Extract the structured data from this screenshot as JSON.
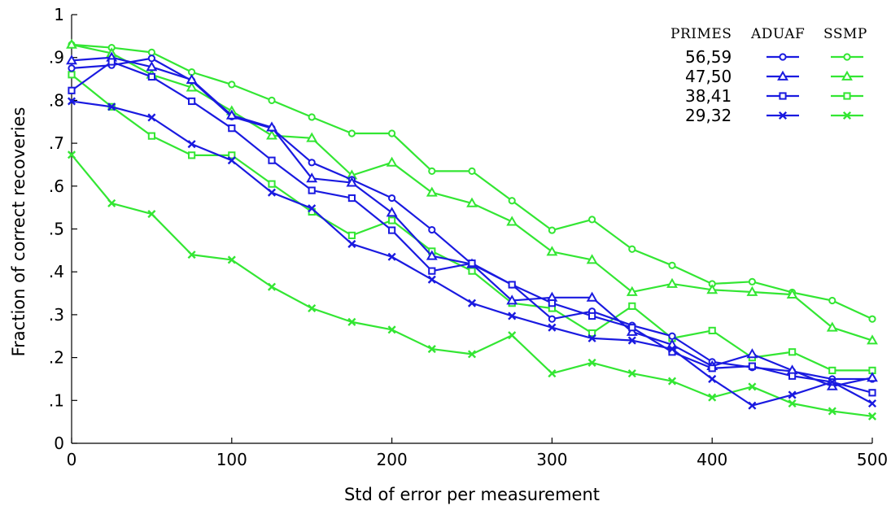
{
  "chart_data": {
    "type": "line",
    "xlabel": "Std of error per measurement",
    "ylabel": "Fraction of correct recoveries",
    "xlim": [
      0,
      500
    ],
    "ylim": [
      0,
      1
    ],
    "x_ticks": [
      0,
      100,
      200,
      300,
      400,
      500
    ],
    "x_tick_labels": [
      "0",
      "100",
      "200",
      "300",
      "400",
      "500"
    ],
    "y_ticks": [
      0,
      0.1,
      0.2,
      0.3,
      0.4,
      0.5,
      0.6,
      0.7,
      0.8,
      0.9,
      1.0
    ],
    "y_tick_labels": [
      "0",
      ".1",
      ".2",
      ".3",
      ".4",
      ".5",
      ".6",
      ".7",
      ".8",
      ".9",
      "1"
    ],
    "grid": false,
    "legend": {
      "placement": "top-right",
      "headers": [
        "PRIMES",
        "ADUAF",
        "SSMP"
      ],
      "rows": [
        "56,59",
        "47,50",
        "38,41",
        "29,32"
      ]
    },
    "colors": {
      "ADUAF": "#1a1ae0",
      "SSMP": "#33e633"
    },
    "x": [
      0,
      25,
      50,
      75,
      100,
      125,
      150,
      175,
      200,
      225,
      250,
      275,
      300,
      325,
      350,
      375,
      400,
      425,
      450,
      475,
      500
    ],
    "series": [
      {
        "method": "ADUAF",
        "primes": "56,59",
        "marker": "circle",
        "values": [
          0.875,
          0.882,
          0.898,
          0.846,
          0.762,
          0.735,
          0.655,
          0.615,
          0.572,
          0.498,
          0.418,
          0.37,
          0.29,
          0.308,
          0.275,
          0.25,
          0.19,
          0.177,
          0.168,
          0.15,
          0.15
        ]
      },
      {
        "method": "ADUAF",
        "primes": "47,50",
        "marker": "triangle",
        "values": [
          0.893,
          0.9,
          0.878,
          0.848,
          0.765,
          0.737,
          0.618,
          0.608,
          0.538,
          0.437,
          0.418,
          0.333,
          0.34,
          0.34,
          0.26,
          0.23,
          0.18,
          0.208,
          0.17,
          0.133,
          0.153
        ]
      },
      {
        "method": "ADUAF",
        "primes": "38,41",
        "marker": "square",
        "values": [
          0.823,
          0.89,
          0.855,
          0.798,
          0.735,
          0.66,
          0.59,
          0.572,
          0.497,
          0.402,
          0.42,
          0.37,
          0.327,
          0.297,
          0.27,
          0.213,
          0.175,
          0.18,
          0.157,
          0.143,
          0.118
        ]
      },
      {
        "method": "ADUAF",
        "primes": "29,32",
        "marker": "cross",
        "values": [
          0.798,
          0.785,
          0.76,
          0.698,
          0.66,
          0.585,
          0.548,
          0.465,
          0.435,
          0.382,
          0.327,
          0.297,
          0.27,
          0.245,
          0.24,
          0.22,
          0.15,
          0.088,
          0.113,
          0.143,
          0.093
        ]
      },
      {
        "method": "SSMP",
        "primes": "56,59",
        "marker": "circle",
        "values": [
          0.93,
          0.923,
          0.912,
          0.866,
          0.837,
          0.8,
          0.761,
          0.723,
          0.723,
          0.635,
          0.635,
          0.566,
          0.497,
          0.522,
          0.453,
          0.415,
          0.372,
          0.377,
          0.352,
          0.333,
          0.29
        ]
      },
      {
        "method": "SSMP",
        "primes": "47,50",
        "marker": "triangle",
        "values": [
          0.93,
          0.91,
          0.86,
          0.83,
          0.775,
          0.718,
          0.712,
          0.625,
          0.655,
          0.585,
          0.56,
          0.517,
          0.447,
          0.428,
          0.353,
          0.372,
          0.358,
          0.353,
          0.347,
          0.27,
          0.24
        ]
      },
      {
        "method": "SSMP",
        "primes": "38,41",
        "marker": "square",
        "values": [
          0.86,
          0.785,
          0.717,
          0.672,
          0.672,
          0.605,
          0.54,
          0.485,
          0.52,
          0.448,
          0.402,
          0.327,
          0.315,
          0.257,
          0.32,
          0.245,
          0.263,
          0.2,
          0.213,
          0.17,
          0.17
        ]
      },
      {
        "method": "SSMP",
        "primes": "29,32",
        "marker": "cross",
        "values": [
          0.673,
          0.56,
          0.535,
          0.44,
          0.428,
          0.365,
          0.315,
          0.283,
          0.265,
          0.22,
          0.208,
          0.252,
          0.163,
          0.188,
          0.163,
          0.145,
          0.107,
          0.132,
          0.093,
          0.075,
          0.063
        ]
      }
    ]
  }
}
